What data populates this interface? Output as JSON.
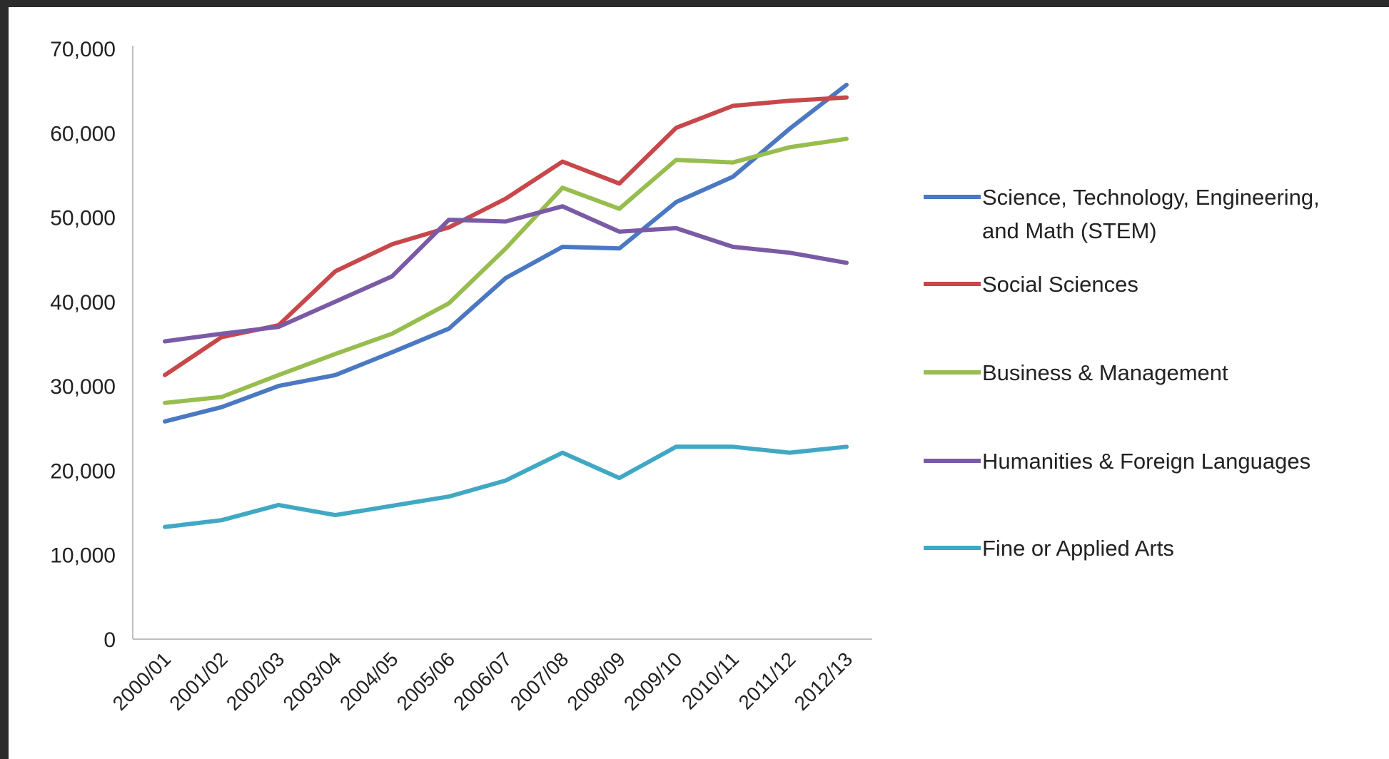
{
  "chart_data": {
    "type": "line",
    "title": "",
    "xlabel": "",
    "ylabel": "",
    "ylim": [
      0,
      70000
    ],
    "yticks": [
      0,
      10000,
      20000,
      30000,
      40000,
      50000,
      60000,
      70000
    ],
    "ytick_labels": [
      "0",
      "10,000",
      "20,000",
      "30,000",
      "40,000",
      "50,000",
      "60,000",
      "70,000"
    ],
    "categories": [
      "2000/01",
      "2001/02",
      "2002/03",
      "2003/04",
      "2004/05",
      "2005/06",
      "2006/07",
      "2007/08",
      "2008/09",
      "2009/10",
      "2010/11",
      "2011/12",
      "2012/13"
    ],
    "grid": false,
    "legend_position": "right",
    "series": [
      {
        "name": "Science, Technology, Engineering, and Math (STEM)",
        "legend_lines": [
          "Science, Technology, Engineering,",
          "and Math (STEM)"
        ],
        "color": "#4a78c2",
        "values": [
          25800,
          27500,
          30000,
          31300,
          34000,
          36800,
          42800,
          46500,
          46300,
          51800,
          54800,
          60500,
          65700
        ]
      },
      {
        "name": "Social Sciences",
        "legend_lines": [
          "Social Sciences"
        ],
        "color": "#c8474a",
        "values": [
          31300,
          35800,
          37200,
          43600,
          46800,
          48800,
          52200,
          56600,
          54000,
          60600,
          63200,
          63800,
          64200
        ]
      },
      {
        "name": "Business & Management",
        "legend_lines": [
          "Business & Management"
        ],
        "color": "#98bd4f",
        "values": [
          28000,
          28700,
          31300,
          33800,
          36200,
          39800,
          46300,
          53500,
          51000,
          56800,
          56500,
          58300,
          59300
        ]
      },
      {
        "name": "Humanities & Foreign Languages",
        "legend_lines": [
          "Humanities & Foreign Languages"
        ],
        "color": "#7a5aa5",
        "values": [
          35300,
          36200,
          37000,
          40000,
          43000,
          49700,
          49500,
          51300,
          48300,
          48700,
          46500,
          45800,
          44600
        ]
      },
      {
        "name": "Fine or Applied Arts",
        "legend_lines": [
          "Fine or Applied Arts"
        ],
        "color": "#41a8c4",
        "values": [
          13300,
          14100,
          15900,
          14700,
          15800,
          16900,
          18800,
          22100,
          19100,
          22800,
          22800,
          22100,
          22800
        ]
      }
    ]
  }
}
